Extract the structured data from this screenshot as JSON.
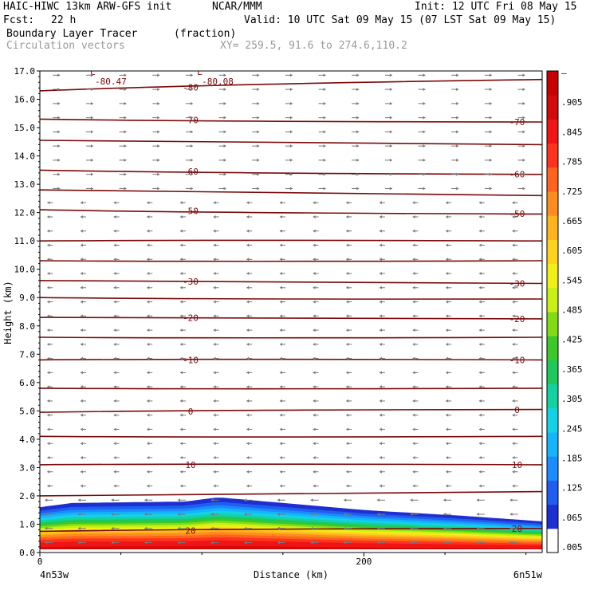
{
  "header": {
    "model": "HAIC-HIWC 13km ARW-GFS init",
    "org": "NCAR/MMM",
    "init": "Init: 12 UTC Fri 08 May 15",
    "fcst_label": "Fcst:",
    "fcst_value": "22 h",
    "valid": "Valid: 10 UTC Sat 09 May 15 (07 LST Sat 09 May 15)",
    "field": "Boundary Layer Tracer",
    "field_units": "(fraction)",
    "vectors": "Circulation vectors",
    "xy": "XY= 259.5, 91.6 to 274.6,110.2"
  },
  "chart_data": {
    "type": "heatmap",
    "xlabel": "Distance (km)",
    "ylabel": "Height (km)",
    "xlim": [
      0,
      310
    ],
    "ylim": [
      0,
      17
    ],
    "x_ticks": [
      0,
      200
    ],
    "x_end_labels": [
      "4n53w",
      "6n51w"
    ],
    "y_ticks": [
      "0.0",
      "1.0",
      "2.0",
      "3.0",
      "4.0",
      "5.0",
      "6.0",
      "7.0",
      "8.0",
      "9.0",
      "10.0",
      "11.0",
      "12.0",
      "13.0",
      "14.0",
      "15.0",
      "16.0",
      "17.0"
    ],
    "colorbar": {
      "ticks": [
        ".005",
        ".065",
        ".125",
        ".185",
        ".245",
        ".305",
        ".365",
        ".425",
        ".485",
        ".545",
        ".605",
        ".665",
        ".725",
        ".785",
        ".845",
        ".905",
        "–"
      ],
      "colors": [
        "#ffffff",
        "#1e2fd2",
        "#1f5ef0",
        "#1a8cff",
        "#14b4ff",
        "#14d2e6",
        "#14d2a0",
        "#1ec85a",
        "#3cc828",
        "#82dc14",
        "#c8f014",
        "#f0f014",
        "#ffd21e",
        "#ffb41e",
        "#ff8c1e",
        "#ff641e",
        "#ff321e",
        "#f01414",
        "#d20a0a",
        "#c80000"
      ]
    },
    "tracer_top_km": [
      {
        "x": 0,
        "top": 1.6
      },
      {
        "x": 20,
        "top": 1.75
      },
      {
        "x": 90,
        "top": 1.8
      },
      {
        "x": 110,
        "top": 1.95
      },
      {
        "x": 150,
        "top": 1.75
      },
      {
        "x": 200,
        "top": 1.5
      },
      {
        "x": 260,
        "top": 1.3
      },
      {
        "x": 310,
        "top": 1.1
      }
    ],
    "temperature_contours": [
      {
        "label": "-80",
        "y_left": 16.3,
        "y_right": 16.7
      },
      {
        "label": "-70",
        "y_left": 15.3,
        "y_right": 15.2
      },
      {
        "label": "",
        "y_left": 14.55,
        "y_right": 14.4
      },
      {
        "label": "-60",
        "y_left": 13.5,
        "y_right": 13.35
      },
      {
        "label": "",
        "y_left": 12.8,
        "y_right": 12.6
      },
      {
        "label": "-50",
        "y_left": 12.1,
        "y_right": 11.95
      },
      {
        "label": "",
        "y_left": 11.0,
        "y_right": 11.0
      },
      {
        "label": "",
        "y_left": 10.3,
        "y_right": 10.3
      },
      {
        "label": "-30",
        "y_left": 9.6,
        "y_right": 9.5
      },
      {
        "label": "",
        "y_left": 9.0,
        "y_right": 8.95
      },
      {
        "label": "-20",
        "y_left": 8.3,
        "y_right": 8.25
      },
      {
        "label": "",
        "y_left": 7.6,
        "y_right": 7.6
      },
      {
        "label": "-10",
        "y_left": 6.8,
        "y_right": 6.8
      },
      {
        "label": "",
        "y_left": 5.8,
        "y_right": 5.8
      },
      {
        "label": "0",
        "y_left": 4.95,
        "y_right": 5.05
      },
      {
        "label": "",
        "y_left": 4.1,
        "y_right": 4.1
      },
      {
        "label": "10",
        "y_left": 3.1,
        "y_right": 3.1
      },
      {
        "label": "",
        "y_left": 2.0,
        "y_right": 2.15
      },
      {
        "label": "20",
        "y_left": 0.75,
        "y_right": 0.85
      }
    ],
    "lows": [
      {
        "label": "L",
        "value": "-80.47",
        "x": 31
      },
      {
        "label": "L",
        "value": "-80.08",
        "x": 97
      }
    ]
  }
}
